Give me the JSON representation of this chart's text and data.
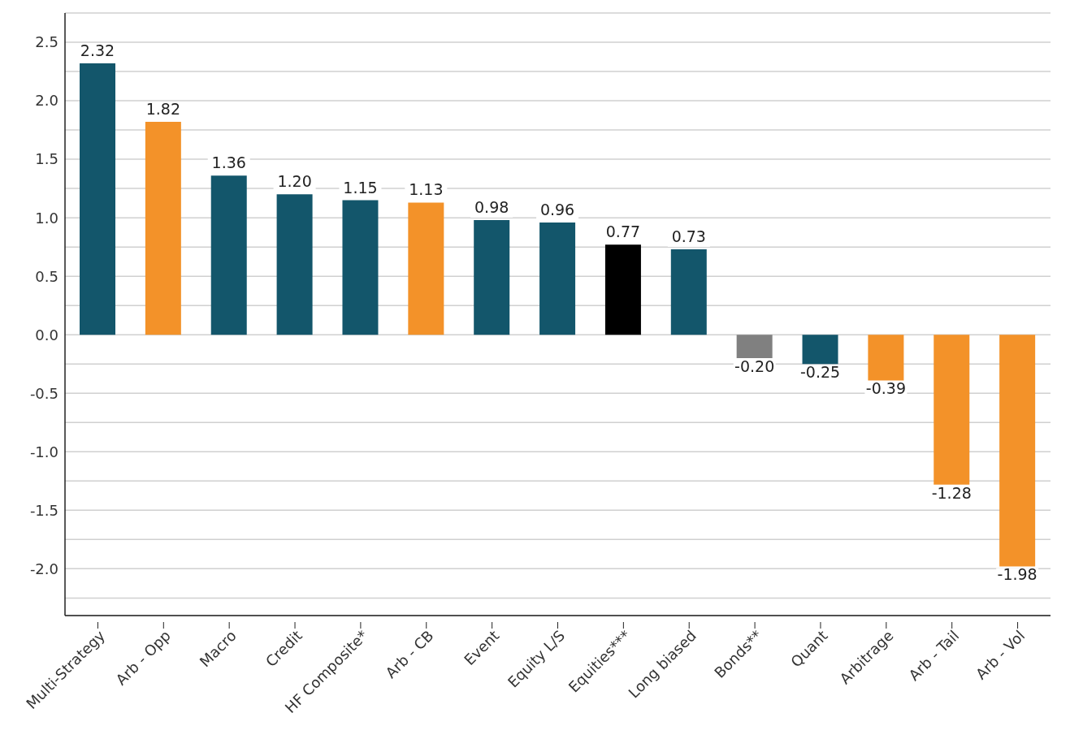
{
  "chart_data": {
    "type": "bar",
    "categories": [
      "Multi-Strategy",
      "Arb - Opp",
      "Macro",
      "Credit",
      "HF Composite*",
      "Arb - CB",
      "Event",
      "Equity L/S",
      "Equities***",
      "Long biased",
      "Bonds**",
      "Quant",
      "Arbitrage",
      "Arb - Tail",
      "Arb - Vol"
    ],
    "values": [
      2.32,
      1.82,
      1.36,
      1.2,
      1.15,
      1.13,
      0.98,
      0.96,
      0.77,
      0.73,
      -0.2,
      -0.25,
      -0.39,
      -1.28,
      -1.98
    ],
    "colors": [
      "#13566b",
      "#f39229",
      "#13566b",
      "#13566b",
      "#13566b",
      "#f39229",
      "#13566b",
      "#13566b",
      "#000000",
      "#13566b",
      "#808080",
      "#13566b",
      "#f39229",
      "#f39229",
      "#f39229"
    ],
    "value_labels": [
      "2.32",
      "1.82",
      "1.36",
      "1.20",
      "1.15",
      "1.13",
      "0.98",
      "0.96",
      "0.77",
      "0.73",
      "-0.20",
      "-0.25",
      "-0.39",
      "-1.28",
      "-1.98"
    ],
    "ylim": [
      -2.4,
      2.75
    ],
    "yticks": [
      {
        "value": -2.25,
        "label": null
      },
      {
        "value": -2.0,
        "label": "-2.0"
      },
      {
        "value": -1.75,
        "label": null
      },
      {
        "value": -1.5,
        "label": "-1.5"
      },
      {
        "value": -1.25,
        "label": null
      },
      {
        "value": -1.0,
        "label": "-1.0"
      },
      {
        "value": -0.75,
        "label": null
      },
      {
        "value": -0.5,
        "label": "-0.5"
      },
      {
        "value": -0.25,
        "label": null
      },
      {
        "value": 0,
        "label": "0.0"
      },
      {
        "value": 0.25,
        "label": null
      },
      {
        "value": 0.5,
        "label": "0.5"
      },
      {
        "value": 0.75,
        "label": null
      },
      {
        "value": 1.0,
        "label": "1.0"
      },
      {
        "value": 1.25,
        "label": null
      },
      {
        "value": 1.5,
        "label": "1.5"
      },
      {
        "value": 1.75,
        "label": null
      },
      {
        "value": 2.0,
        "label": "2.0"
      },
      {
        "value": 2.25,
        "label": null
      },
      {
        "value": 2.5,
        "label": "2.5"
      }
    ],
    "grid": "y"
  }
}
